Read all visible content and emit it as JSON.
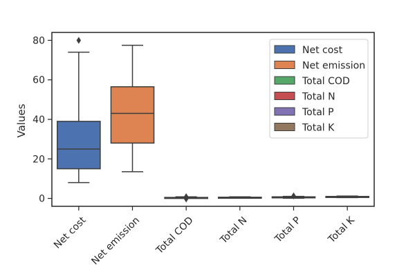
{
  "chart_data": {
    "type": "box",
    "ylabel": "Values",
    "xlabel": "",
    "ylim": [
      -4,
      84
    ],
    "yticks": [
      0,
      20,
      40,
      60,
      80
    ],
    "grid": false,
    "legend_position": "top-right",
    "series": [
      {
        "name": "Net cost",
        "color": "#4c72b0",
        "whisker_low": 8,
        "q1": 15,
        "median": 25,
        "q3": 39,
        "whisker_high": 74,
        "outliers": [
          80
        ]
      },
      {
        "name": "Net emission",
        "color": "#dd8452",
        "whisker_low": 13.5,
        "q1": 28,
        "median": 43,
        "q3": 56.5,
        "whisker_high": 77.5,
        "outliers": []
      },
      {
        "name": "Total COD",
        "color": "#55a868",
        "whisker_low": 0.1,
        "q1": 0.3,
        "median": 0.4,
        "q3": 0.5,
        "whisker_high": 0.8,
        "outliers": [
          -0.3,
          0.9
        ]
      },
      {
        "name": "Total N",
        "color": "#c44e52",
        "whisker_low": 0.2,
        "q1": 0.4,
        "median": 0.5,
        "q3": 0.6,
        "whisker_high": 0.8,
        "outliers": []
      },
      {
        "name": "Total P",
        "color": "#8172b3",
        "whisker_low": 0.1,
        "q1": 0.4,
        "median": 0.6,
        "q3": 0.8,
        "whisker_high": 1.0,
        "outliers": [
          1.3
        ]
      },
      {
        "name": "Total K",
        "color": "#937860",
        "whisker_low": 0.4,
        "q1": 0.6,
        "median": 0.8,
        "q3": 1.0,
        "whisker_high": 1.2,
        "outliers": []
      }
    ]
  }
}
